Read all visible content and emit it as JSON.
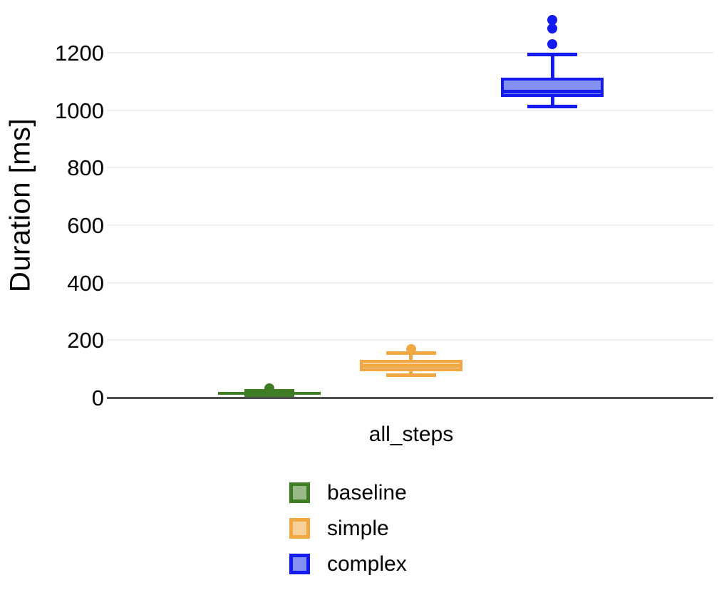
{
  "chart_data": {
    "type": "boxplot",
    "title": "",
    "ylabel": "Duration [ms]",
    "xlabel": "",
    "category": "all_steps",
    "yticks": [
      0,
      200,
      400,
      600,
      800,
      1000,
      1200
    ],
    "ylim": [
      0,
      1350
    ],
    "grid": "horizontal-light",
    "legend_position": "bottom-center",
    "series": [
      {
        "name": "baseline",
        "border_color": "#3e7d24",
        "fill_color": "#99ba88",
        "box": {
          "whisker_low": 5,
          "q1": 9,
          "median": 14,
          "q3": 19,
          "whisker_high": 24,
          "outliers": [
            31
          ]
        }
      },
      {
        "name": "simple",
        "border_color": "#f1a843",
        "fill_color": "#f8d099",
        "box": {
          "whisker_low": 79,
          "q1": 92,
          "median": 111,
          "q3": 131,
          "whisker_high": 156,
          "outliers": [
            168
          ]
        }
      },
      {
        "name": "complex",
        "border_color": "#141bf0",
        "fill_color": "#8491f0",
        "box": {
          "whisker_low": 1013,
          "q1": 1047,
          "median": 1066,
          "q3": 1113,
          "whisker_high": 1195,
          "outliers": [
            1230,
            1284,
            1313
          ]
        }
      }
    ],
    "colors": {
      "axis_line": "#4d4d4d",
      "gridline": "#efefef",
      "text": "#000000",
      "background": "#ffffff"
    }
  }
}
